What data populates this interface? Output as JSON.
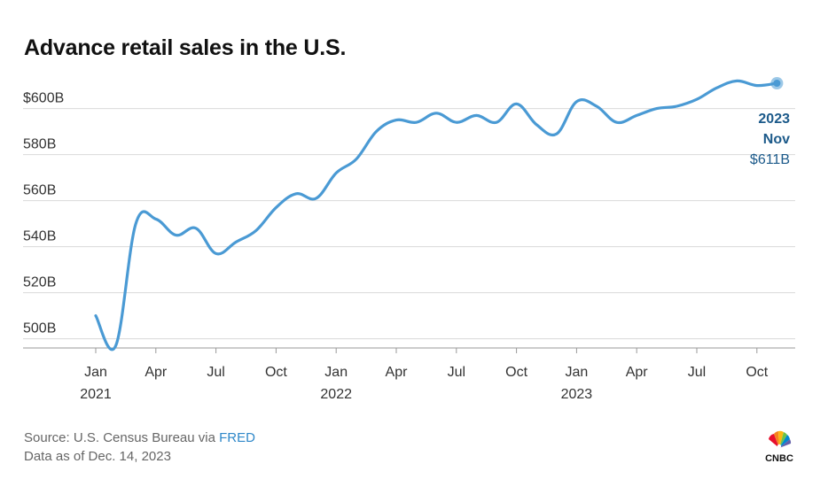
{
  "title": "Advance retail sales in the U.S.",
  "source": {
    "prefix": "Source: U.S. Census Bureau via ",
    "link": "FRED",
    "date_note": "Data as of Dec. 14, 2023"
  },
  "logo": {
    "text": "CNBC",
    "icon": "nbc-peacock-icon"
  },
  "colors": {
    "line": "#4a9ad4",
    "annotation": "#1c5a8a",
    "grid": "#d9d9d9",
    "axis_text": "#333333"
  },
  "chart_data": {
    "type": "line",
    "title": "Advance retail sales in the U.S.",
    "xlabel": "",
    "ylabel": "",
    "ylim": [
      496,
      610
    ],
    "y_ticks": [
      {
        "value": 500,
        "label": "500B"
      },
      {
        "value": 520,
        "label": "520B"
      },
      {
        "value": 540,
        "label": "540B"
      },
      {
        "value": 560,
        "label": "560B"
      },
      {
        "value": 580,
        "label": "580B"
      },
      {
        "value": 600,
        "label": "$600B"
      }
    ],
    "x_ticks": [
      {
        "index": 0,
        "label": "Jan",
        "year": "2021"
      },
      {
        "index": 3,
        "label": "Apr",
        "year": ""
      },
      {
        "index": 6,
        "label": "Jul",
        "year": ""
      },
      {
        "index": 9,
        "label": "Oct",
        "year": ""
      },
      {
        "index": 12,
        "label": "Jan",
        "year": "2022"
      },
      {
        "index": 15,
        "label": "Apr",
        "year": ""
      },
      {
        "index": 18,
        "label": "Jul",
        "year": ""
      },
      {
        "index": 21,
        "label": "Oct",
        "year": ""
      },
      {
        "index": 24,
        "label": "Jan",
        "year": "2023"
      },
      {
        "index": 27,
        "label": "Apr",
        "year": ""
      },
      {
        "index": 30,
        "label": "Jul",
        "year": ""
      },
      {
        "index": 33,
        "label": "Oct",
        "year": ""
      }
    ],
    "series": [
      {
        "name": "Advance retail sales",
        "unit": "billions USD",
        "x": [
          "2021-01",
          "2021-02",
          "2021-03",
          "2021-04",
          "2021-05",
          "2021-06",
          "2021-07",
          "2021-08",
          "2021-09",
          "2021-10",
          "2021-11",
          "2021-12",
          "2022-01",
          "2022-02",
          "2022-03",
          "2022-04",
          "2022-05",
          "2022-06",
          "2022-07",
          "2022-08",
          "2022-09",
          "2022-10",
          "2022-11",
          "2022-12",
          "2023-01",
          "2023-02",
          "2023-03",
          "2023-04",
          "2023-05",
          "2023-06",
          "2023-07",
          "2023-08",
          "2023-09",
          "2023-10",
          "2023-11"
        ],
        "values": [
          510,
          497,
          550,
          552,
          545,
          548,
          537,
          542,
          547,
          557,
          563,
          561,
          572,
          578,
          590,
          595,
          594,
          598,
          594,
          597,
          594,
          602,
          593,
          589,
          603,
          601,
          594,
          597,
          600,
          601,
          604,
          609,
          612,
          610,
          611
        ]
      }
    ],
    "annotation": {
      "year": "2023",
      "month": "Nov",
      "value": "$611B"
    },
    "grid": true,
    "legend": "none"
  }
}
